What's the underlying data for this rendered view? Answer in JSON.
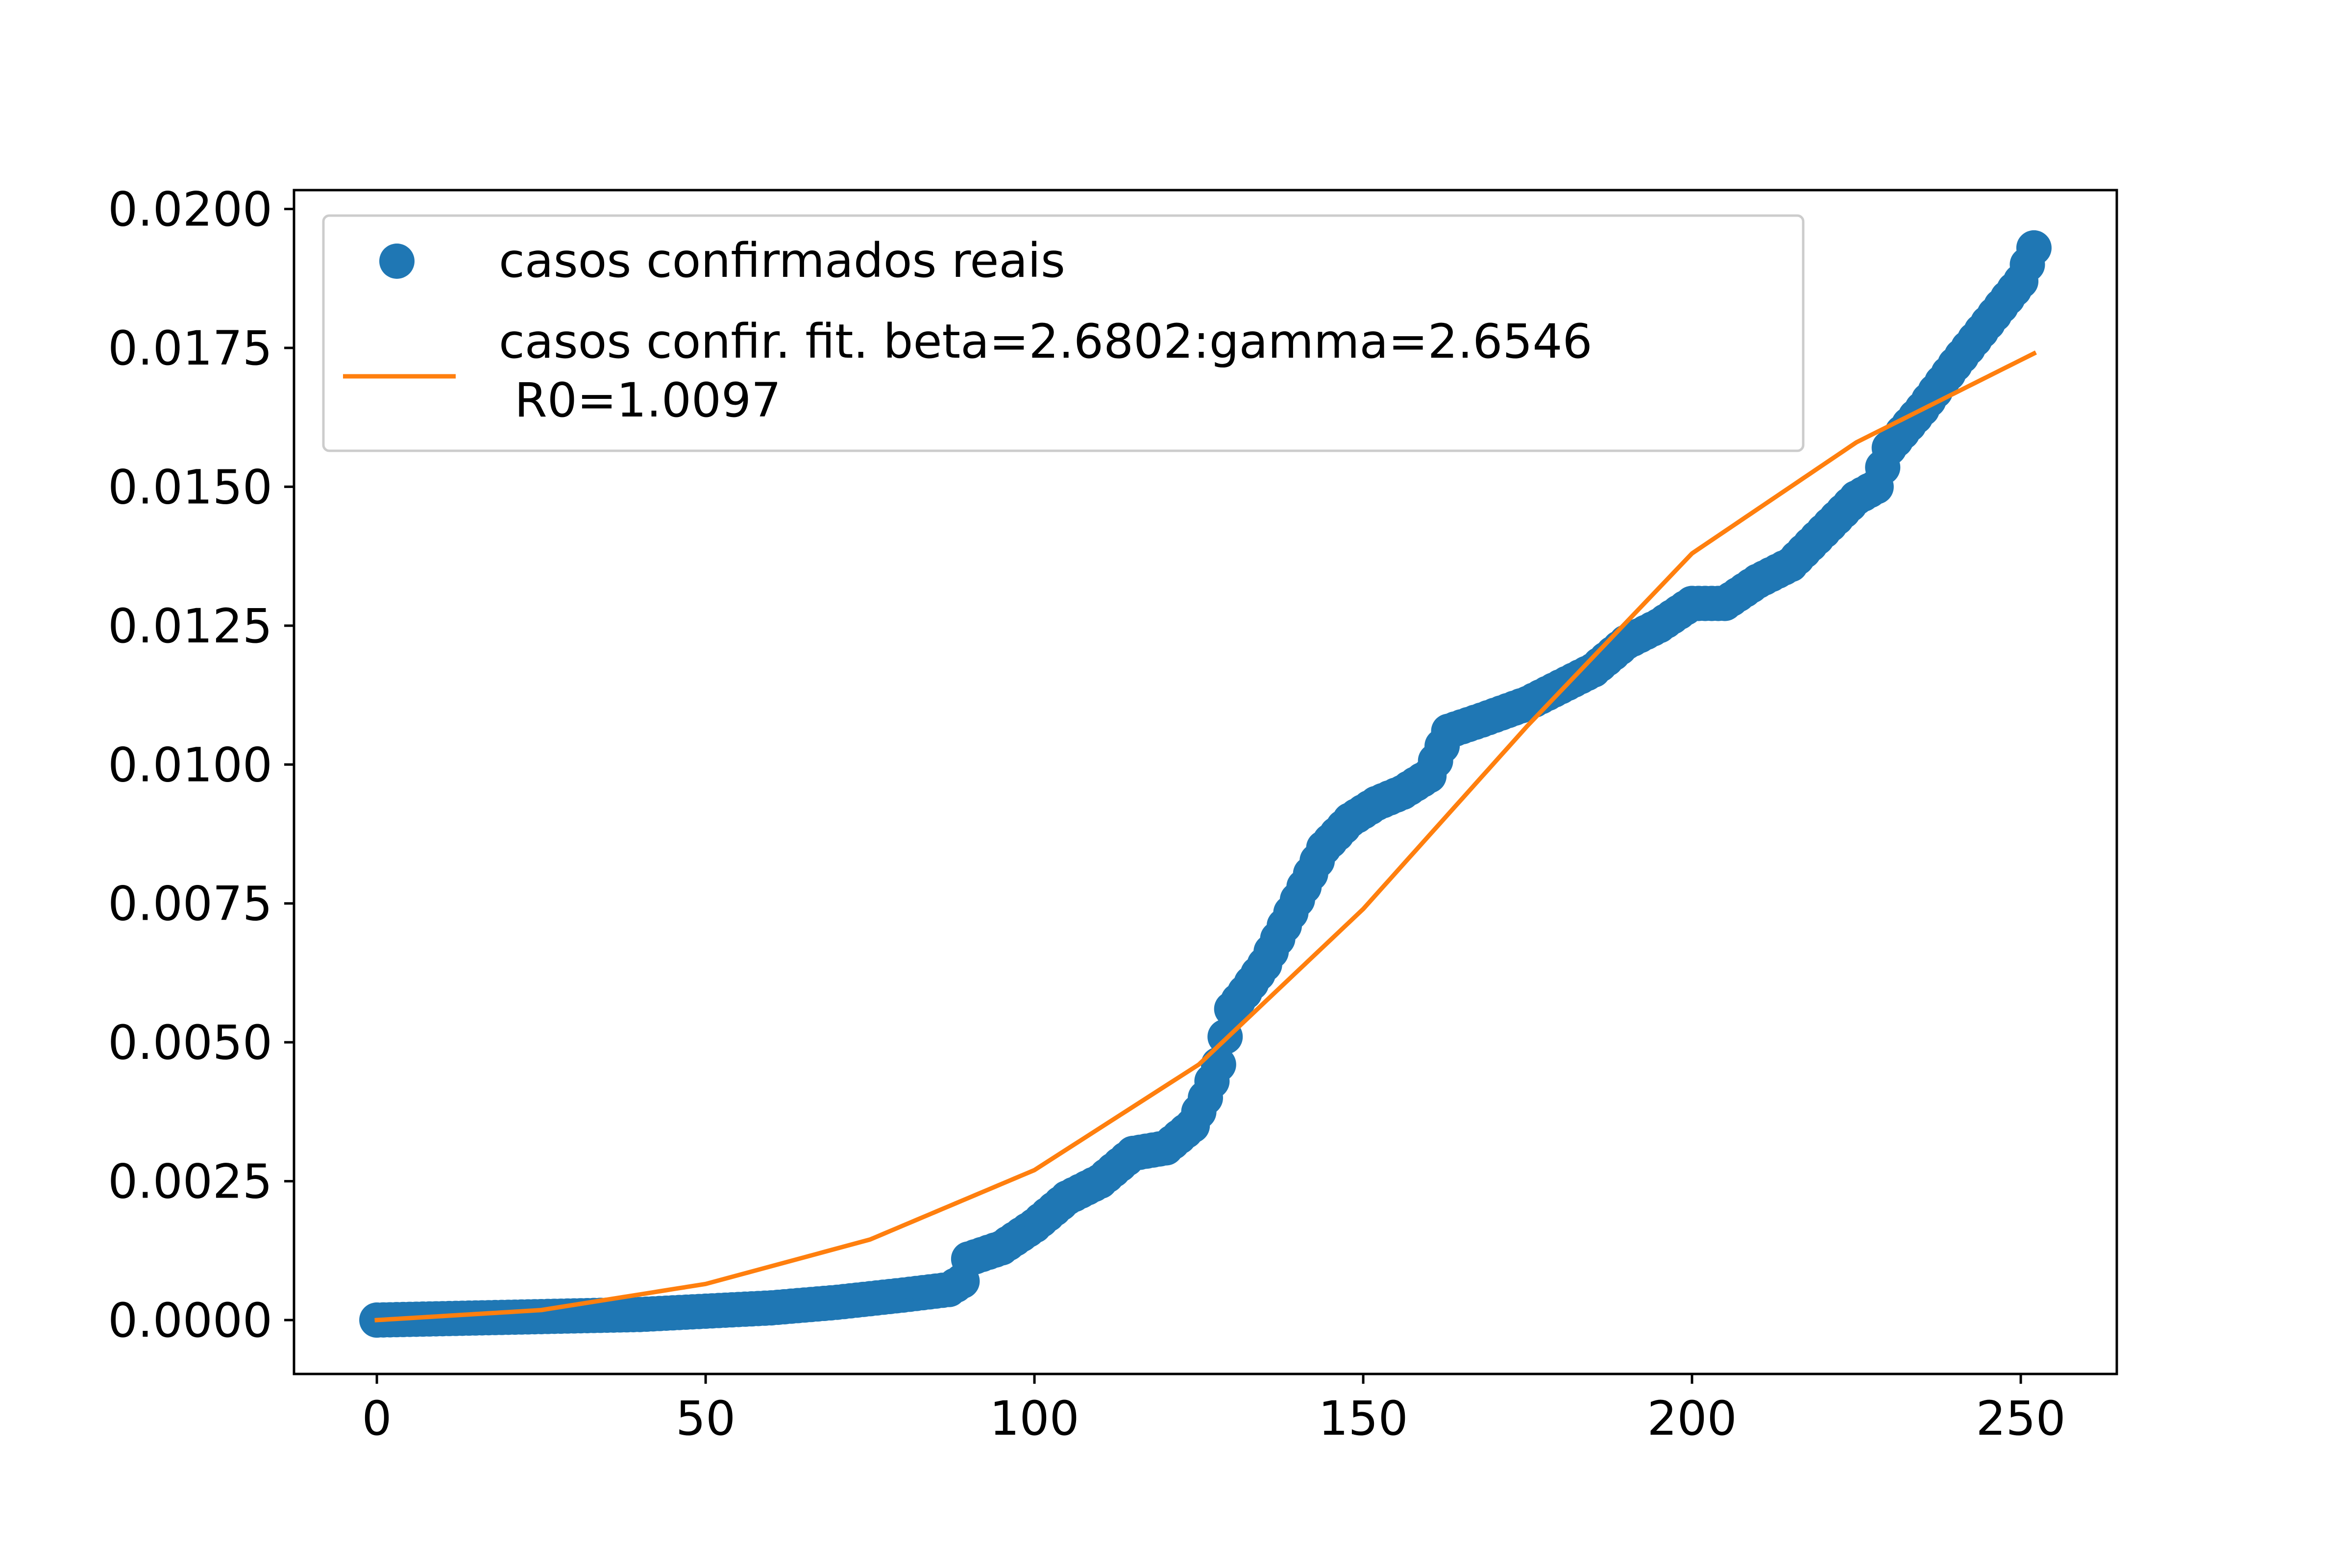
{
  "chart_data": {
    "type": "line",
    "title": "",
    "xlabel": "",
    "ylabel": "",
    "xlim": [
      -12.6,
      264.6
    ],
    "ylim": [
      -0.00097,
      0.02034
    ],
    "x_ticks": [
      "0",
      "50",
      "100",
      "150",
      "200",
      "250"
    ],
    "x_tick_values": [
      0,
      50,
      100,
      150,
      200,
      250
    ],
    "y_ticks": [
      "0.0000",
      "0.0025",
      "0.0050",
      "0.0075",
      "0.0100",
      "0.0125",
      "0.0150",
      "0.0175",
      "0.0200"
    ],
    "y_tick_values": [
      0,
      0.0025,
      0.005,
      0.0075,
      0.01,
      0.0125,
      0.015,
      0.0175,
      0.02
    ],
    "grid": false,
    "legend_position": "upper-left",
    "series": [
      {
        "name": "casos confirmados reais",
        "kind": "points",
        "color": "#1f77b4",
        "x_range": [
          0,
          252
        ],
        "anchors": [
          [
            0,
            0.0
          ],
          [
            20,
            5e-05
          ],
          [
            40,
            0.0001
          ],
          [
            50,
            0.00016
          ],
          [
            60,
            0.00022
          ],
          [
            70,
            0.00032
          ],
          [
            80,
            0.00045
          ],
          [
            87,
            0.00055
          ],
          [
            89,
            0.0007
          ],
          [
            90,
            0.0011
          ],
          [
            95,
            0.0013
          ],
          [
            100,
            0.0017
          ],
          [
            105,
            0.0022
          ],
          [
            110,
            0.0025
          ],
          [
            115,
            0.003
          ],
          [
            120,
            0.0031
          ],
          [
            124,
            0.0035
          ],
          [
            126,
            0.004
          ],
          [
            128,
            0.0046
          ],
          [
            130,
            0.0056
          ],
          [
            132,
            0.0059
          ],
          [
            135,
            0.0064
          ],
          [
            138,
            0.0071
          ],
          [
            141,
            0.0078
          ],
          [
            144,
            0.0085
          ],
          [
            148,
            0.009
          ],
          [
            152,
            0.0093
          ],
          [
            156,
            0.0095
          ],
          [
            160,
            0.0098
          ],
          [
            163,
            0.0106
          ],
          [
            168,
            0.0108
          ],
          [
            175,
            0.0111
          ],
          [
            180,
            0.0114
          ],
          [
            185,
            0.0117
          ],
          [
            190,
            0.0122
          ],
          [
            195,
            0.0125
          ],
          [
            200,
            0.0129
          ],
          [
            205,
            0.0129
          ],
          [
            210,
            0.0133
          ],
          [
            215,
            0.0136
          ],
          [
            220,
            0.0142
          ],
          [
            225,
            0.0148
          ],
          [
            228,
            0.015
          ],
          [
            230,
            0.0157
          ],
          [
            235,
            0.0164
          ],
          [
            240,
            0.0172
          ],
          [
            244,
            0.0178
          ],
          [
            248,
            0.0184
          ],
          [
            250,
            0.0187
          ],
          [
            252,
            0.0193
          ]
        ]
      },
      {
        "name": "casos confir. fit. beta=2.6802:gamma=2.6546\n R0=1.0097",
        "kind": "line",
        "color": "#ff7f0e",
        "x_range": [
          0,
          252
        ],
        "anchors": [
          [
            0,
            0.0
          ],
          [
            25,
            0.00018
          ],
          [
            50,
            0.00065
          ],
          [
            75,
            0.00145
          ],
          [
            100,
            0.0027
          ],
          [
            125,
            0.0046
          ],
          [
            150,
            0.0074
          ],
          [
            175,
            0.0107
          ],
          [
            200,
            0.0138
          ],
          [
            225,
            0.0158
          ],
          [
            252,
            0.0174
          ]
        ]
      }
    ],
    "legend": {
      "entries": [
        {
          "label": "casos confirmados reais",
          "marker": "circle"
        },
        {
          "label_line1": "casos confir. fit. beta=2.6802:gamma=2.6546",
          "label_line2": "R0=1.0097",
          "marker": "line"
        }
      ]
    }
  }
}
